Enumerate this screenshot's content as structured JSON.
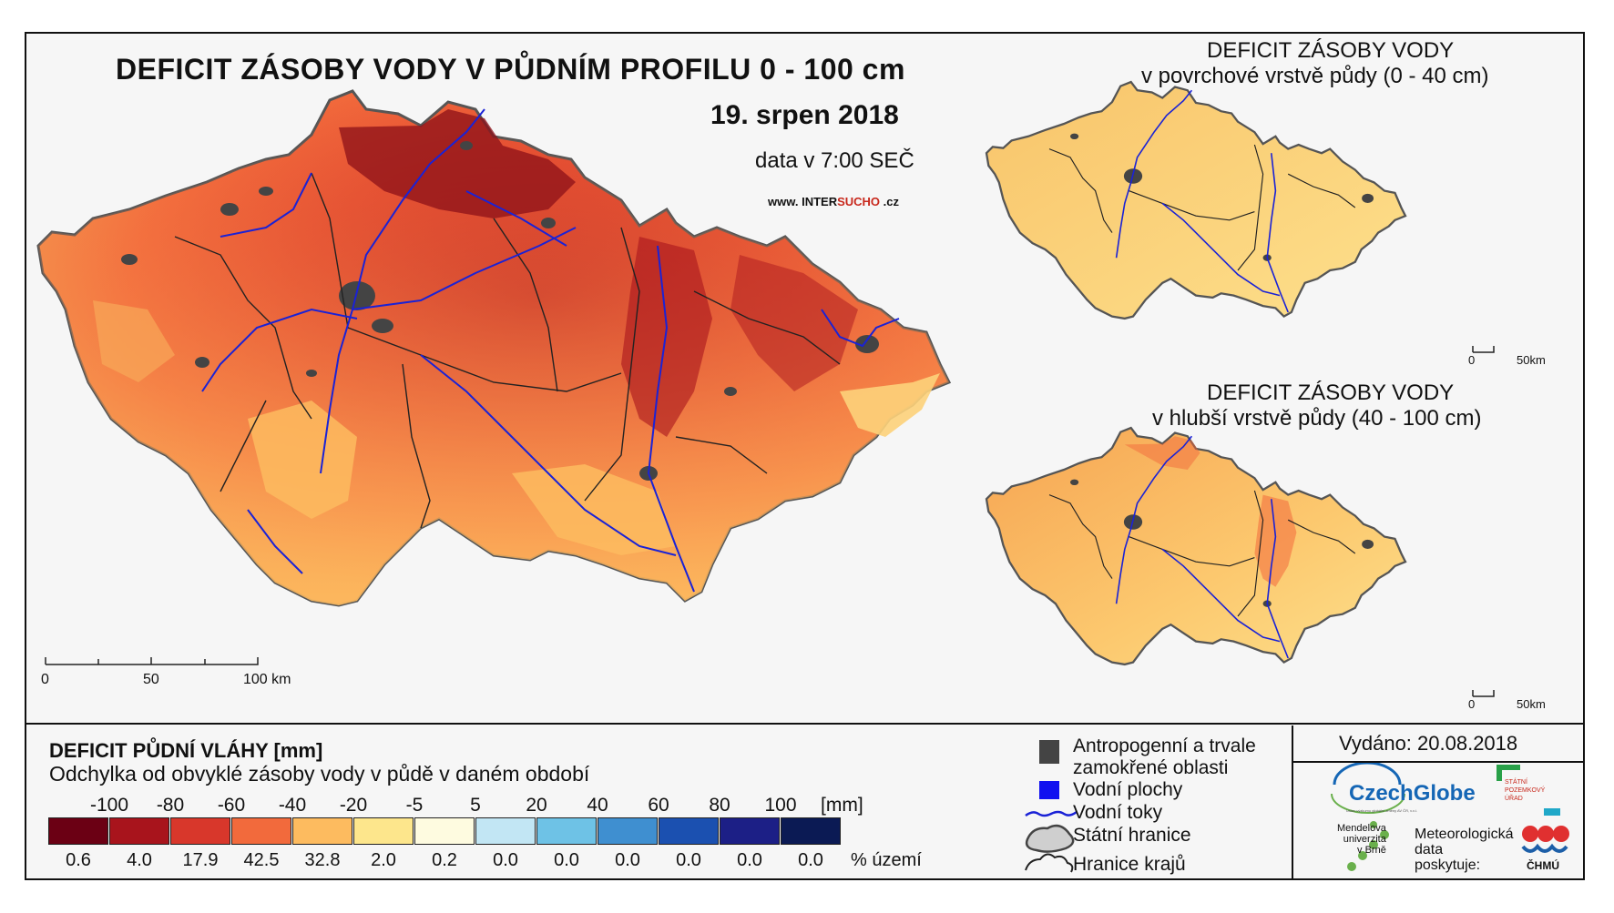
{
  "main_map": {
    "title": "DEFICIT ZÁSOBY VODY V PŮDNÍM PROFILU 0 - 100 cm",
    "date": "19. srpen 2018",
    "time": "data v 7:00 SEČ",
    "website_prefix": "www. INTER",
    "website_highlight": "SUCHO",
    "website_suffix": " .cz",
    "scale": {
      "labels": [
        "0",
        "50",
        "100 km"
      ]
    }
  },
  "inset_top": {
    "title_line1": "DEFICIT ZÁSOBY VODY",
    "title_line2": "v povrchové vrstvě půdy (0 - 40 cm)",
    "scale": {
      "labels": [
        "0",
        "50km"
      ]
    }
  },
  "inset_bottom": {
    "title_line1": "DEFICIT ZÁSOBY VODY",
    "title_line2": "v hlubší vrstvě půdy (40 - 100 cm)",
    "scale": {
      "labels": [
        "0",
        "50km"
      ]
    }
  },
  "legend": {
    "title": "DEFICIT PŮDNÍ VLÁHY [mm]",
    "subtitle": "Odchylka od obvyklé zásoby vody v půdě v daném období",
    "boundaries": [
      "-100",
      "-80",
      "-60",
      "-40",
      "-20",
      "-5",
      "5",
      "20",
      "40",
      "60",
      "80",
      "100"
    ],
    "unit": "[mm]",
    "classes": [
      {
        "color": "#6b0014",
        "pct": "0.6"
      },
      {
        "color": "#a8141c",
        "pct": "4.0"
      },
      {
        "color": "#d8372b",
        "pct": "17.9"
      },
      {
        "color": "#f26a3c",
        "pct": "42.5"
      },
      {
        "color": "#fdbb5f",
        "pct": "32.8"
      },
      {
        "color": "#fde68c",
        "pct": "2.0"
      },
      {
        "color": "#fefbe0",
        "pct": "0.2"
      },
      {
        "color": "#c2e6f4",
        "pct": "0.0"
      },
      {
        "color": "#6ec2e6",
        "pct": "0.0"
      },
      {
        "color": "#3f8fd0",
        "pct": "0.0"
      },
      {
        "color": "#1b50b0",
        "pct": "0.0"
      },
      {
        "color": "#1c1f86",
        "pct": "0.0"
      },
      {
        "color": "#0b1a54",
        "pct": "0.0"
      }
    ],
    "pct_unit": "% území"
  },
  "symbols": {
    "anthropogenic_line1": "Antropogenní a trvale",
    "anthropogenic_line2": "zamokřené oblasti",
    "water_bodies": "Vodní plochy",
    "rivers": "Vodní toky",
    "state_border": "Státní hranice",
    "region_border": "Hranice krajů"
  },
  "issued": "Vydáno: 20.08.2018",
  "logos": {
    "czechglobe": "CzechGlobe",
    "czechglobe_sub": "Ústav výzkumu globální změny AV ČR, v.v.i.",
    "spu_line1": "STÁTNÍ",
    "spu_line2": "POZEMKOVÝ",
    "spu_line3": "ÚŘAD",
    "mendelu_line1": "Mendelova",
    "mendelu_line2": "univerzita",
    "mendelu_line3": "v Brně",
    "chmu_line1": "Meteorologická",
    "chmu_line2": "data",
    "chmu_line3": "poskytuje:",
    "chmu": "ČHMÚ"
  },
  "colors": {
    "river": "#1a22d6",
    "urban": "#444444",
    "border": "#222222"
  }
}
